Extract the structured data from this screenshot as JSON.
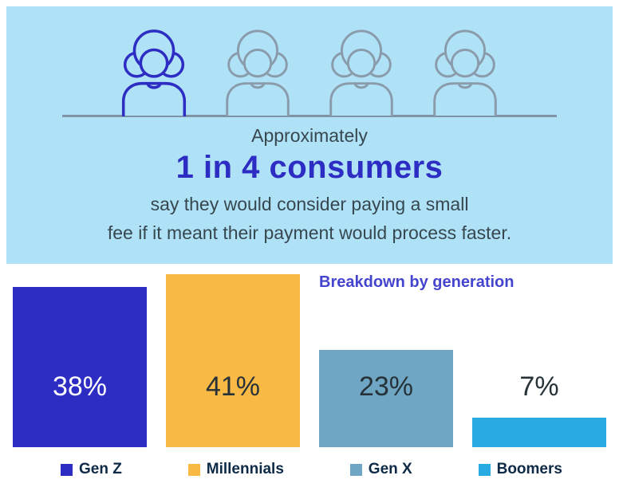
{
  "colors": {
    "hero_bg": "#b0e2f7",
    "accent": "#2d2dc4",
    "icon_gray": "#8a9cab",
    "baseline_gray": "#7e93a5",
    "text_dark": "#37474f",
    "title_blue": "#4444cf",
    "legend_text": "#0e2a47"
  },
  "hero": {
    "line1": "Approximately",
    "line2": "1 in 4 consumers",
    "line3": "say they would consider paying a small",
    "line4": "fee if it meant their payment would process faster."
  },
  "chart_data": {
    "type": "bar",
    "title": "Breakdown by generation",
    "categories": [
      "Gen Z",
      "Millennials",
      "Gen X",
      "Boomers"
    ],
    "values": [
      38,
      41,
      23,
      7
    ],
    "value_labels": [
      "38%",
      "41%",
      "23%",
      "7%"
    ],
    "bar_colors": [
      "#2d2dc4",
      "#f9b945",
      "#6fa6c4",
      "#29abe2"
    ],
    "value_label_colors": [
      "#ffffff",
      "#263238",
      "#263238",
      "#263238"
    ],
    "xlabel": "",
    "ylabel": "",
    "ylim": [
      0,
      45
    ],
    "grid": false,
    "legend_position": "bottom"
  }
}
